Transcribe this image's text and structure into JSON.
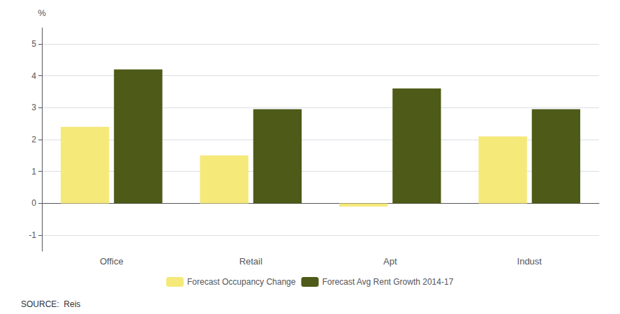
{
  "chart_data": {
    "type": "bar",
    "categories": [
      "Office",
      "Retail",
      "Apt",
      "Indust"
    ],
    "series": [
      {
        "name": "Forecast Occupancy Change",
        "color": "#f5e97a",
        "values": [
          2.4,
          1.5,
          -0.1,
          2.1
        ]
      },
      {
        "name": "Forecast Avg Rent Growth 2014-17",
        "color": "#4d5a18",
        "values": [
          4.2,
          2.95,
          3.6,
          2.95
        ]
      }
    ],
    "ylabel": "%",
    "ylim": [
      -1.5,
      5.5
    ],
    "yticks": [
      -1,
      0,
      1,
      2,
      3,
      4,
      5
    ],
    "grid": true,
    "legend": "bottom",
    "annotations": [
      "SOURCE:  Reis"
    ]
  }
}
